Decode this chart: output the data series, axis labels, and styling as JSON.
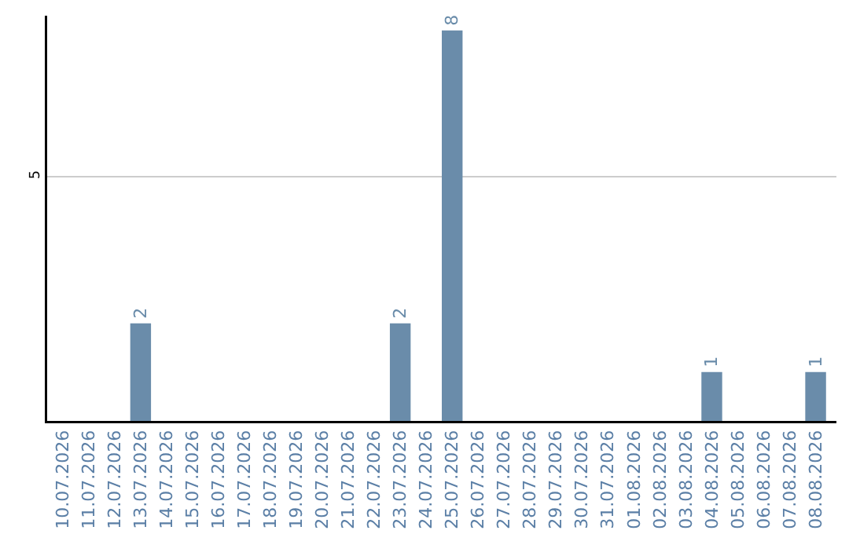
{
  "chart_data": {
    "type": "bar",
    "categories": [
      "10.07.2026",
      "11.07.2026",
      "12.07.2026",
      "13.07.2026",
      "14.07.2026",
      "15.07.2026",
      "16.07.2026",
      "17.07.2026",
      "18.07.2026",
      "19.07.2026",
      "20.07.2026",
      "21.07.2026",
      "22.07.2026",
      "23.07.2026",
      "24.07.2026",
      "25.07.2026",
      "26.07.2026",
      "27.07.2026",
      "28.07.2026",
      "29.07.2026",
      "30.07.2026",
      "31.07.2026",
      "01.08.2026",
      "02.08.2026",
      "03.08.2026",
      "04.08.2026",
      "05.08.2026",
      "06.08.2026",
      "07.08.2026",
      "08.08.2026"
    ],
    "values": [
      0,
      0,
      0,
      2,
      0,
      0,
      0,
      0,
      0,
      0,
      0,
      0,
      0,
      2,
      0,
      8,
      0,
      0,
      0,
      0,
      0,
      0,
      0,
      0,
      0,
      1,
      0,
      0,
      0,
      1
    ],
    "value_labels": [
      null,
      null,
      null,
      "2",
      null,
      null,
      null,
      null,
      null,
      null,
      null,
      null,
      null,
      "2",
      null,
      "8",
      null,
      null,
      null,
      null,
      null,
      null,
      null,
      null,
      null,
      "1",
      null,
      null,
      null,
      "1"
    ],
    "color": "#6a8caa",
    "ylim": [
      0,
      8.3
    ],
    "yticks": [
      {
        "value": 0,
        "label": null
      },
      5
    ],
    "grid": "y",
    "legend": false
  }
}
